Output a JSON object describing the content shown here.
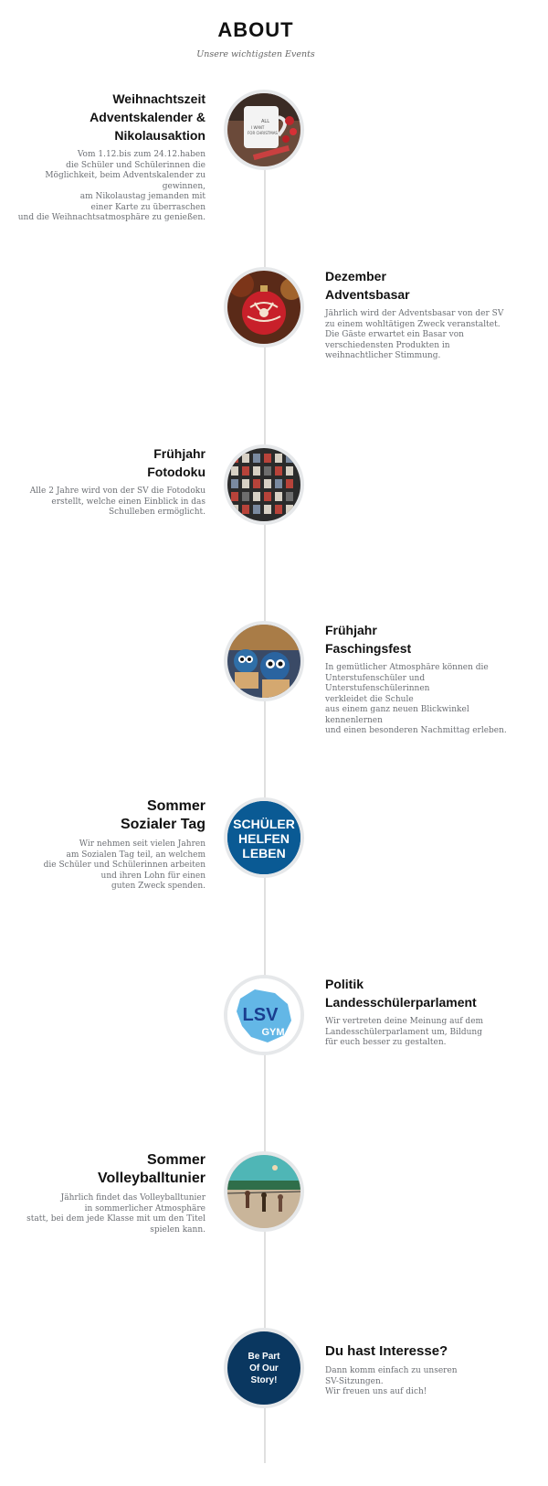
{
  "header": {
    "title": "ABOUT",
    "subtitle": "Unsere wichtigsten Events"
  },
  "events": [
    {
      "title": "Weihnachtszeit",
      "subtitle": "Adventskalender & Nikolausaktion",
      "description": "Vom 1.12.bis zum 24.12.haben\ndie Schüler und Schülerinnen die\nMöglichkeit, beim Adventskalender zu gewinnen,\nam Nikolaustag jemanden mit\neiner Karte zu überraschen\nund die Weihnachtsatmosphäre zu genießen.",
      "image": "christmas-mug-photo"
    },
    {
      "title": "Dezember",
      "subtitle": "Adventsbasar",
      "description": "Jährlich wird der Adventsbasar von der SV\nzu einem  wohltätigen Zweck veranstaltet.\nDie Gäste erwartet  ein Basar von\nverschiedensten Produkten in\n weihnachtlicher Stimmung.",
      "image": "christmas-ornament-photo"
    },
    {
      "title": "Frühjahr",
      "subtitle": "Fotodoku",
      "description": "Alle 2 Jahre wird von der SV die Fotodoku\nerstellt, welche einen Einblick in das\nSchulleben ermöglicht.",
      "image": "photo-grid-photo"
    },
    {
      "title": "Frühjahr",
      "subtitle": "Faschingsfest",
      "description": "In gemütlicher Atmosphäre können die\nUnterstufenschüler und Unterstufenschülerinnen\nverkleidet die Schule\naus einem ganz neuen Blickwinkel kennenlernen\nund einen besonderen Nachmittag erleben.",
      "image": "carnival-cupcakes-photo"
    },
    {
      "title": "Sommer",
      "subtitle": "Sozialer Tag",
      "description": "Wir nehmen seit vielen Jahren\nam Sozialen Tag teil,  an welchem\ndie Schüler und Schülerinnen arbeiten\nund ihren Lohn für einen\nguten Zweck spenden.",
      "image": "schueler-helfen-leben-logo",
      "logo_text": [
        "SCHÜLER",
        "HELFEN",
        "LEBEN"
      ]
    },
    {
      "title": "Politik",
      "subtitle": "Landesschülerparlament",
      "description": "Wir vertreten deine Meinung auf dem\nLandesschülerparlament um, Bildung\nfür euch besser zu gestalten.",
      "image": "lsv-gym-logo",
      "logo_text": [
        "LSV",
        "GYM"
      ]
    },
    {
      "title": "Sommer",
      "subtitle": "Volleyballtunier",
      "description": "Jährlich findet das Volleyballtunier\nin sommerlicher Atmosphäre\nstatt, bei dem jede Klasse mit um den Titel\nspielen kann.",
      "image": "beach-volleyball-photo"
    },
    {
      "title": "Du hast Interesse?",
      "subtitle": "",
      "description": "Dann komm einfach zu unseren\nSV-Sitzungen.\nWir freuen uns auf dich!",
      "circle_text": "Be Part\nOf Our\nStory!"
    }
  ],
  "colors": {
    "navy": "#0a3760",
    "timeline": "#e0e0e0",
    "circle_border": "#e6e8ea",
    "text_muted": "#6c6f74"
  }
}
